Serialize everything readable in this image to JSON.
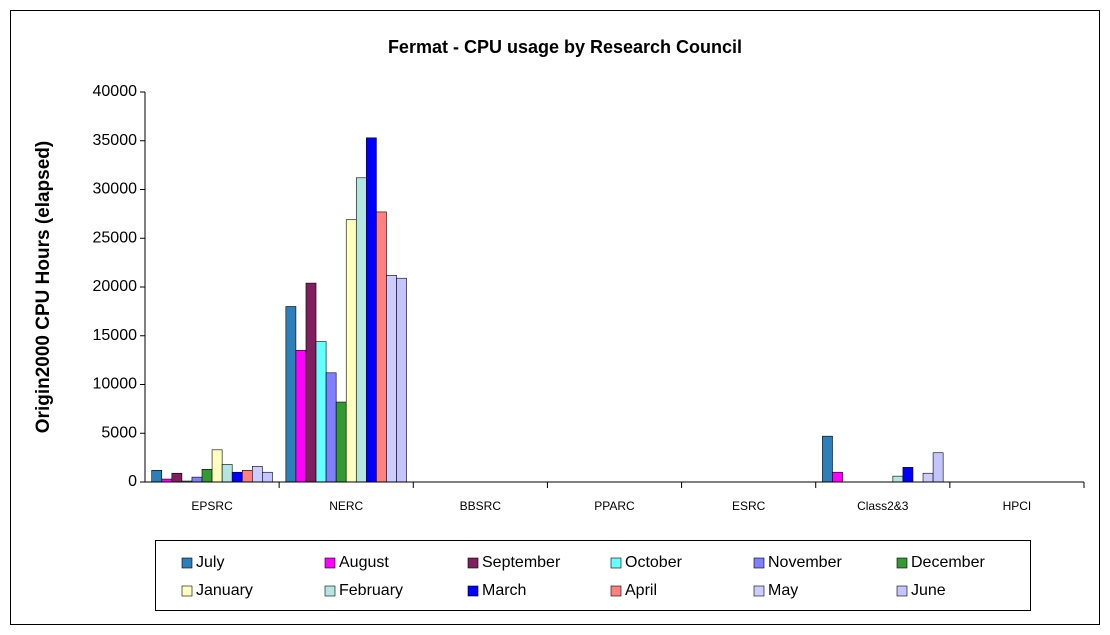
{
  "chart_data": {
    "type": "bar",
    "title": "Fermat - CPU usage by Research Council",
    "y_label": "Origin2000 CPU Hours (elapsed)",
    "categories": [
      "EPSRC",
      "NERC",
      "BBSRC",
      "PPARC",
      "ESRC",
      "Class2&3",
      "HPCI"
    ],
    "series": [
      {
        "name": "July",
        "color": "#2c7fb8",
        "values": [
          1200,
          18000,
          0,
          0,
          0,
          4700,
          0
        ]
      },
      {
        "name": "August",
        "color": "#ff00ff",
        "values": [
          300,
          13500,
          0,
          0,
          0,
          1000,
          0
        ]
      },
      {
        "name": "September",
        "color": "#7f1f5f",
        "values": [
          900,
          20400,
          0,
          0,
          0,
          0,
          0
        ]
      },
      {
        "name": "October",
        "color": "#66ffff",
        "values": [
          100,
          14400,
          0,
          0,
          0,
          0,
          0
        ]
      },
      {
        "name": "November",
        "color": "#7f7fff",
        "values": [
          500,
          11200,
          0,
          0,
          0,
          0,
          0
        ]
      },
      {
        "name": "December",
        "color": "#339933",
        "values": [
          1300,
          8200,
          0,
          0,
          0,
          0,
          0
        ]
      },
      {
        "name": "January",
        "color": "#ffffc0",
        "values": [
          3300,
          26900,
          0,
          0,
          0,
          0,
          0
        ]
      },
      {
        "name": "February",
        "color": "#b3e6e0",
        "values": [
          1800,
          31200,
          0,
          0,
          0,
          600,
          0
        ]
      },
      {
        "name": "March",
        "color": "#0000ff",
        "values": [
          1000,
          35300,
          0,
          0,
          0,
          1500,
          0
        ]
      },
      {
        "name": "April",
        "color": "#ff8080",
        "values": [
          1200,
          27700,
          0,
          0,
          0,
          0,
          0
        ]
      },
      {
        "name": "May",
        "color": "#ccccff",
        "values": [
          1600,
          21200,
          0,
          0,
          0,
          900,
          0
        ]
      },
      {
        "name": "June",
        "color": "#c4c4ff",
        "values": [
          1000,
          20900,
          0,
          0,
          0,
          3000,
          0
        ]
      }
    ],
    "ylim": [
      0,
      40000
    ],
    "yticks": [
      0,
      5000,
      10000,
      15000,
      20000,
      25000,
      30000,
      35000,
      40000
    ],
    "legend": "bottom"
  }
}
